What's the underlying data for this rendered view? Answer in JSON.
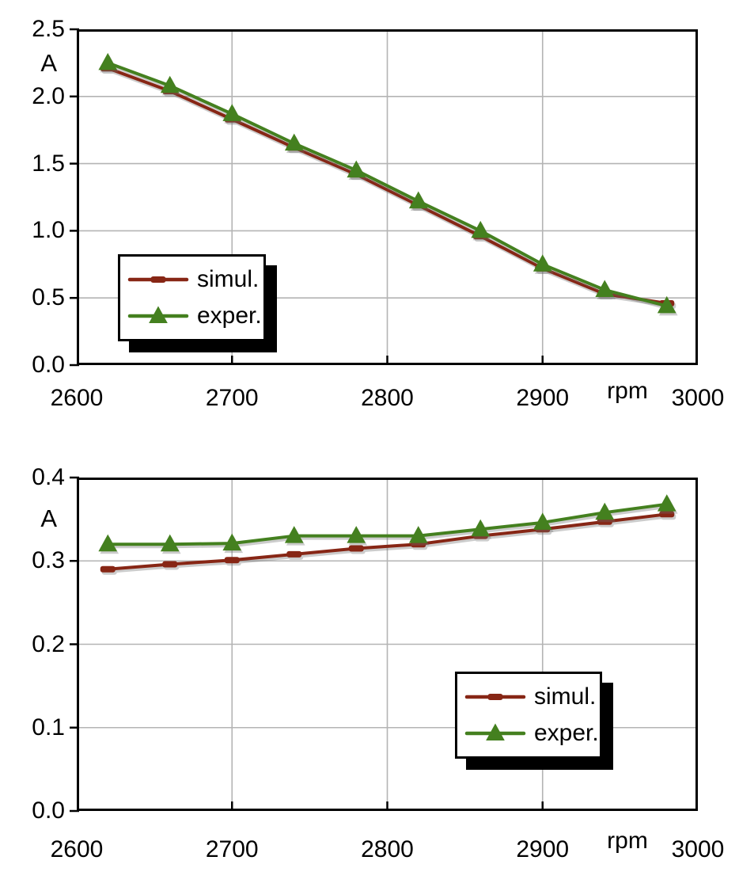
{
  "figure": {
    "background": "#ffffff",
    "grid_color": "#b4b4b4",
    "frame_color": "#000000",
    "text_color": "#000000"
  },
  "chart_data": [
    {
      "type": "line",
      "title": "",
      "ylabel": "A",
      "x_unit_label": "rpm",
      "xlim": [
        2600,
        3000
      ],
      "ylim": [
        0,
        2.5
      ],
      "xtick_labels": [
        "2600",
        "2700",
        "2800",
        "2900",
        "3000"
      ],
      "ytick_labels": [
        "0.0",
        "0.5",
        "1.0",
        "1.5",
        "2.0",
        "2.5"
      ],
      "grid": true,
      "legend_position": "bottom-left",
      "x": [
        2620,
        2660,
        2700,
        2740,
        2780,
        2820,
        2860,
        2900,
        2940,
        2980
      ],
      "series": [
        {
          "name": "simul.",
          "color": "#872615",
          "marker": "square",
          "values": [
            2.21,
            2.04,
            1.83,
            1.62,
            1.42,
            1.19,
            0.96,
            0.72,
            0.53,
            0.46
          ]
        },
        {
          "name": "exper.",
          "color": "#44801f",
          "marker": "triangle",
          "values": [
            2.25,
            2.08,
            1.87,
            1.65,
            1.45,
            1.22,
            1.0,
            0.75,
            0.56,
            0.44
          ]
        }
      ]
    },
    {
      "type": "line",
      "title": "",
      "ylabel": "A",
      "x_unit_label": "rpm",
      "xlim": [
        2600,
        3000
      ],
      "ylim": [
        0,
        0.4
      ],
      "xtick_labels": [
        "2600",
        "2700",
        "2800",
        "2900",
        "3000"
      ],
      "ytick_labels": [
        "0.0",
        "0.1",
        "0.2",
        "0.3",
        "0.4"
      ],
      "grid": true,
      "legend_position": "bottom-right",
      "x": [
        2620,
        2660,
        2700,
        2740,
        2780,
        2820,
        2860,
        2900,
        2940,
        2980
      ],
      "series": [
        {
          "name": "simul.",
          "color": "#872615",
          "marker": "square",
          "values": [
            0.29,
            0.296,
            0.301,
            0.308,
            0.315,
            0.32,
            0.33,
            0.338,
            0.347,
            0.356
          ]
        },
        {
          "name": "exper.",
          "color": "#44801f",
          "marker": "triangle",
          "values": [
            0.32,
            0.32,
            0.321,
            0.33,
            0.33,
            0.33,
            0.338,
            0.346,
            0.358,
            0.368
          ]
        }
      ]
    }
  ]
}
